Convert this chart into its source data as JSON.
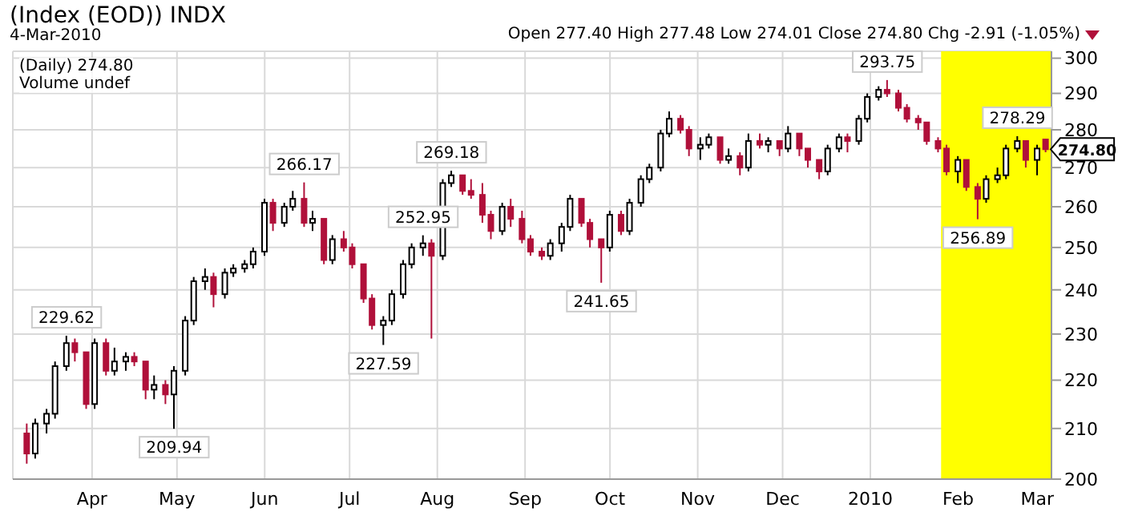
{
  "chart_data": {
    "type": "candlestick",
    "title": "(Index (EOD)) INDX",
    "subtitle": "4-Mar-2010",
    "annotations": [
      "Open 277.40 High 277.48 Low 274.01 Close 274.80 Chg -2.91 (-1.05%)",
      "(Daily) 274.80",
      "Volume undef",
      {
        "text": "229.62",
        "x": "2009-03-23",
        "y": 229.62
      },
      {
        "text": "209.94",
        "x": "2009-04-30",
        "y": 209.94
      },
      {
        "text": "266.17",
        "x": "2009-06-15",
        "y": 266.17
      },
      {
        "text": "227.59",
        "x": "2009-07-13",
        "y": 227.59
      },
      {
        "text": "252.95",
        "x": "2009-07-27",
        "y": 252.95
      },
      {
        "text": "269.18",
        "x": "2009-08-06",
        "y": 269.18
      },
      {
        "text": "241.65",
        "x": "2009-09-28",
        "y": 241.65
      },
      {
        "text": "293.75",
        "x": "2010-01-07",
        "y": 293.75
      },
      {
        "text": "256.89",
        "x": "2010-02-08",
        "y": 256.89
      },
      {
        "text": "278.29",
        "x": "2010-02-22",
        "y": 278.29
      },
      {
        "text": "274.80",
        "x": "2010-03-04",
        "y": 274.8
      }
    ],
    "x": [
      "2009-03-09",
      "2009-03-12",
      "2009-03-16",
      "2009-03-19",
      "2009-03-23",
      "2009-03-26",
      "2009-03-30",
      "2009-04-02",
      "2009-04-06",
      "2009-04-09",
      "2009-04-13",
      "2009-04-16",
      "2009-04-20",
      "2009-04-23",
      "2009-04-27",
      "2009-04-30",
      "2009-05-04",
      "2009-05-07",
      "2009-05-11",
      "2009-05-14",
      "2009-05-18",
      "2009-05-21",
      "2009-05-25",
      "2009-05-28",
      "2009-06-01",
      "2009-06-04",
      "2009-06-08",
      "2009-06-11",
      "2009-06-15",
      "2009-06-18",
      "2009-06-22",
      "2009-06-25",
      "2009-06-29",
      "2009-07-02",
      "2009-07-06",
      "2009-07-09",
      "2009-07-13",
      "2009-07-16",
      "2009-07-20",
      "2009-07-23",
      "2009-07-27",
      "2009-07-30",
      "2009-08-03",
      "2009-08-06",
      "2009-08-10",
      "2009-08-13",
      "2009-08-17",
      "2009-08-20",
      "2009-08-24",
      "2009-08-27",
      "2009-08-31",
      "2009-09-03",
      "2009-09-07",
      "2009-09-10",
      "2009-09-14",
      "2009-09-17",
      "2009-09-21",
      "2009-09-24",
      "2009-09-28",
      "2009-10-01",
      "2009-10-05",
      "2009-10-08",
      "2009-10-12",
      "2009-10-15",
      "2009-10-19",
      "2009-10-22",
      "2009-10-26",
      "2009-10-29",
      "2009-11-02",
      "2009-11-05",
      "2009-11-09",
      "2009-11-12",
      "2009-11-16",
      "2009-11-19",
      "2009-11-23",
      "2009-11-26",
      "2009-11-30",
      "2009-12-03",
      "2009-12-07",
      "2009-12-10",
      "2009-12-14",
      "2009-12-17",
      "2009-12-21",
      "2009-12-24",
      "2009-12-28",
      "2009-12-31",
      "2010-01-04",
      "2010-01-07",
      "2010-01-11",
      "2010-01-14",
      "2010-01-18",
      "2010-01-21",
      "2010-01-25",
      "2010-01-28",
      "2010-02-01",
      "2010-02-04",
      "2010-02-08",
      "2010-02-11",
      "2010-02-15",
      "2010-02-18",
      "2010-02-22",
      "2010-02-25",
      "2010-03-01",
      "2010-03-04"
    ],
    "ohlc": [
      [
        209,
        211,
        203,
        205
      ],
      [
        205,
        212,
        204,
        211
      ],
      [
        211,
        214,
        209,
        213
      ],
      [
        213,
        224,
        212,
        223
      ],
      [
        223,
        229.62,
        222,
        228
      ],
      [
        228,
        229,
        224,
        226
      ],
      [
        226,
        226,
        214,
        215
      ],
      [
        215,
        229,
        214,
        228
      ],
      [
        228,
        229,
        221,
        222
      ],
      [
        222,
        227,
        221,
        224
      ],
      [
        224,
        226,
        222,
        225
      ],
      [
        225,
        226,
        223,
        224
      ],
      [
        224,
        224,
        216,
        218
      ],
      [
        218,
        221,
        216,
        219
      ],
      [
        219,
        220,
        215,
        217
      ],
      [
        217,
        223,
        209.94,
        222
      ],
      [
        222,
        234,
        221,
        233
      ],
      [
        233,
        243,
        232,
        242
      ],
      [
        242,
        245,
        240,
        243
      ],
      [
        243,
        244,
        236,
        239
      ],
      [
        239,
        245,
        238,
        244
      ],
      [
        244,
        246,
        243,
        245
      ],
      [
        245,
        247,
        244,
        246
      ],
      [
        246,
        250,
        245,
        249
      ],
      [
        249,
        262,
        248,
        261
      ],
      [
        261,
        262,
        254,
        256
      ],
      [
        256,
        261,
        255,
        260
      ],
      [
        260,
        264,
        259,
        262
      ],
      [
        262,
        266.17,
        255,
        256
      ],
      [
        256,
        259,
        254,
        257
      ],
      [
        257,
        257,
        246,
        247
      ],
      [
        247,
        253,
        246,
        252
      ],
      [
        252,
        254,
        249,
        250
      ],
      [
        250,
        251,
        245,
        246
      ],
      [
        246,
        246,
        237,
        238
      ],
      [
        238,
        239,
        231,
        232
      ],
      [
        232,
        234,
        227.59,
        233
      ],
      [
        233,
        240,
        232,
        239
      ],
      [
        239,
        247,
        238,
        246
      ],
      [
        246,
        251,
        245,
        250
      ],
      [
        250,
        252.95,
        248,
        251
      ],
      [
        251,
        252,
        229,
        248
      ],
      [
        248,
        267,
        247,
        266
      ],
      [
        266,
        269.18,
        265,
        268
      ],
      [
        268,
        268,
        263,
        264
      ],
      [
        264,
        267,
        262,
        263
      ],
      [
        263,
        266,
        256,
        258
      ],
      [
        258,
        259,
        252,
        254
      ],
      [
        254,
        261,
        253,
        260
      ],
      [
        260,
        262,
        255,
        257
      ],
      [
        257,
        259,
        251,
        252
      ],
      [
        252,
        253,
        248,
        249
      ],
      [
        249,
        250,
        247,
        248
      ],
      [
        248,
        252,
        247,
        251
      ],
      [
        251,
        256,
        249,
        255
      ],
      [
        255,
        263,
        254,
        262
      ],
      [
        262,
        262,
        255,
        256
      ],
      [
        256,
        257,
        250,
        252
      ],
      [
        252,
        252,
        241.65,
        250
      ],
      [
        250,
        259,
        249,
        258
      ],
      [
        258,
        259,
        253,
        254
      ],
      [
        254,
        262,
        253,
        261
      ],
      [
        261,
        268,
        260,
        267
      ],
      [
        267,
        271,
        266,
        270
      ],
      [
        270,
        280,
        269,
        279
      ],
      [
        279,
        285,
        278,
        283
      ],
      [
        283,
        284,
        279,
        280
      ],
      [
        280,
        281,
        273,
        275
      ],
      [
        275,
        278,
        272,
        276
      ],
      [
        276,
        279,
        275,
        278
      ],
      [
        278,
        278,
        271,
        272
      ],
      [
        272,
        275,
        271,
        273
      ],
      [
        273,
        274,
        268,
        270
      ],
      [
        270,
        279,
        269,
        277
      ],
      [
        277,
        279,
        275,
        276
      ],
      [
        276,
        278,
        274,
        277
      ],
      [
        277,
        277,
        273,
        275
      ],
      [
        275,
        281,
        274,
        279
      ],
      [
        279,
        279,
        273,
        275
      ],
      [
        275,
        275,
        270,
        272
      ],
      [
        272,
        272,
        267,
        269
      ],
      [
        269,
        276,
        268,
        275
      ],
      [
        275,
        279,
        274,
        278
      ],
      [
        278,
        279,
        274,
        277
      ],
      [
        277,
        284,
        276,
        283
      ],
      [
        283,
        290,
        282,
        289
      ],
      [
        289,
        292,
        288,
        291
      ],
      [
        291,
        293.75,
        289,
        290
      ],
      [
        290,
        291,
        285,
        286
      ],
      [
        286,
        287,
        282,
        283
      ],
      [
        283,
        284,
        280,
        282
      ],
      [
        282,
        282,
        276,
        277
      ],
      [
        277,
        278,
        274,
        275
      ],
      [
        275,
        276,
        268,
        269
      ],
      [
        269,
        273,
        266,
        272
      ],
      [
        272,
        272,
        264,
        265
      ],
      [
        265,
        266,
        256.89,
        262
      ],
      [
        262,
        268,
        261,
        267
      ],
      [
        267,
        270,
        266,
        268
      ],
      [
        268,
        276,
        267,
        275
      ],
      [
        275,
        278.29,
        274,
        277
      ],
      [
        277,
        277,
        270,
        272
      ],
      [
        272,
        276,
        268,
        275
      ],
      [
        277.4,
        277.48,
        274.01,
        274.8
      ]
    ],
    "colors": [
      "#b0103a",
      "#000000",
      "#000000",
      "#000000",
      "#000000",
      "#b0103a",
      "#b0103a",
      "#000000",
      "#b0103a",
      "#000000",
      "#000000",
      "#b0103a",
      "#b0103a",
      "#000000",
      "#b0103a",
      "#000000",
      "#000000",
      "#000000",
      "#000000",
      "#b0103a",
      "#000000",
      "#000000",
      "#000000",
      "#000000",
      "#000000",
      "#b0103a",
      "#000000",
      "#000000",
      "#b0103a",
      "#000000",
      "#b0103a",
      "#000000",
      "#b0103a",
      "#b0103a",
      "#b0103a",
      "#b0103a",
      "#000000",
      "#000000",
      "#000000",
      "#000000",
      "#000000",
      "#b0103a",
      "#000000",
      "#000000",
      "#b0103a",
      "#b0103a",
      "#b0103a",
      "#b0103a",
      "#000000",
      "#b0103a",
      "#b0103a",
      "#b0103a",
      "#b0103a",
      "#000000",
      "#000000",
      "#000000",
      "#b0103a",
      "#b0103a",
      "#b0103a",
      "#000000",
      "#b0103a",
      "#000000",
      "#000000",
      "#000000",
      "#000000",
      "#000000",
      "#b0103a",
      "#b0103a",
      "#000000",
      "#000000",
      "#b0103a",
      "#000000",
      "#b0103a",
      "#000000",
      "#b0103a",
      "#000000",
      "#b0103a",
      "#000000",
      "#b0103a",
      "#b0103a",
      "#b0103a",
      "#000000",
      "#000000",
      "#b0103a",
      "#000000",
      "#000000",
      "#000000",
      "#b0103a",
      "#b0103a",
      "#b0103a",
      "#b0103a",
      "#b0103a",
      "#b0103a",
      "#b0103a",
      "#000000",
      "#b0103a",
      "#b0103a",
      "#000000",
      "#000000",
      "#000000",
      "#000000",
      "#b0103a",
      "#000000",
      "#b0103a"
    ],
    "bands": [
      {
        "axis": "x",
        "from": "2010-01-26",
        "to": "2010-03-06",
        "color": "#ffff00"
      }
    ],
    "xlim": [
      "2009-03-04",
      "2010-03-06"
    ],
    "xticks": [
      {
        "value": "2009-04-01",
        "label": "Apr"
      },
      {
        "value": "2009-05-01",
        "label": "May"
      },
      {
        "value": "2009-06-01",
        "label": "Jun"
      },
      {
        "value": "2009-07-01",
        "label": "Jul"
      },
      {
        "value": "2009-08-01",
        "label": "Aug"
      },
      {
        "value": "2009-09-01",
        "label": "Sep"
      },
      {
        "value": "2009-10-01",
        "label": "Oct"
      },
      {
        "value": "2009-11-01",
        "label": "Nov"
      },
      {
        "value": "2009-12-01",
        "label": "Dec"
      },
      {
        "value": "2010-01-01",
        "label": "2010"
      },
      {
        "value": "2010-02-01",
        "label": "Feb"
      },
      {
        "value": "2010-03-01",
        "label": "Mar"
      }
    ],
    "ylim": [
      200,
      302
    ],
    "yticks": [
      200,
      210,
      220,
      230,
      240,
      250,
      260,
      270,
      280,
      290,
      300
    ],
    "log": true,
    "grid": true
  }
}
